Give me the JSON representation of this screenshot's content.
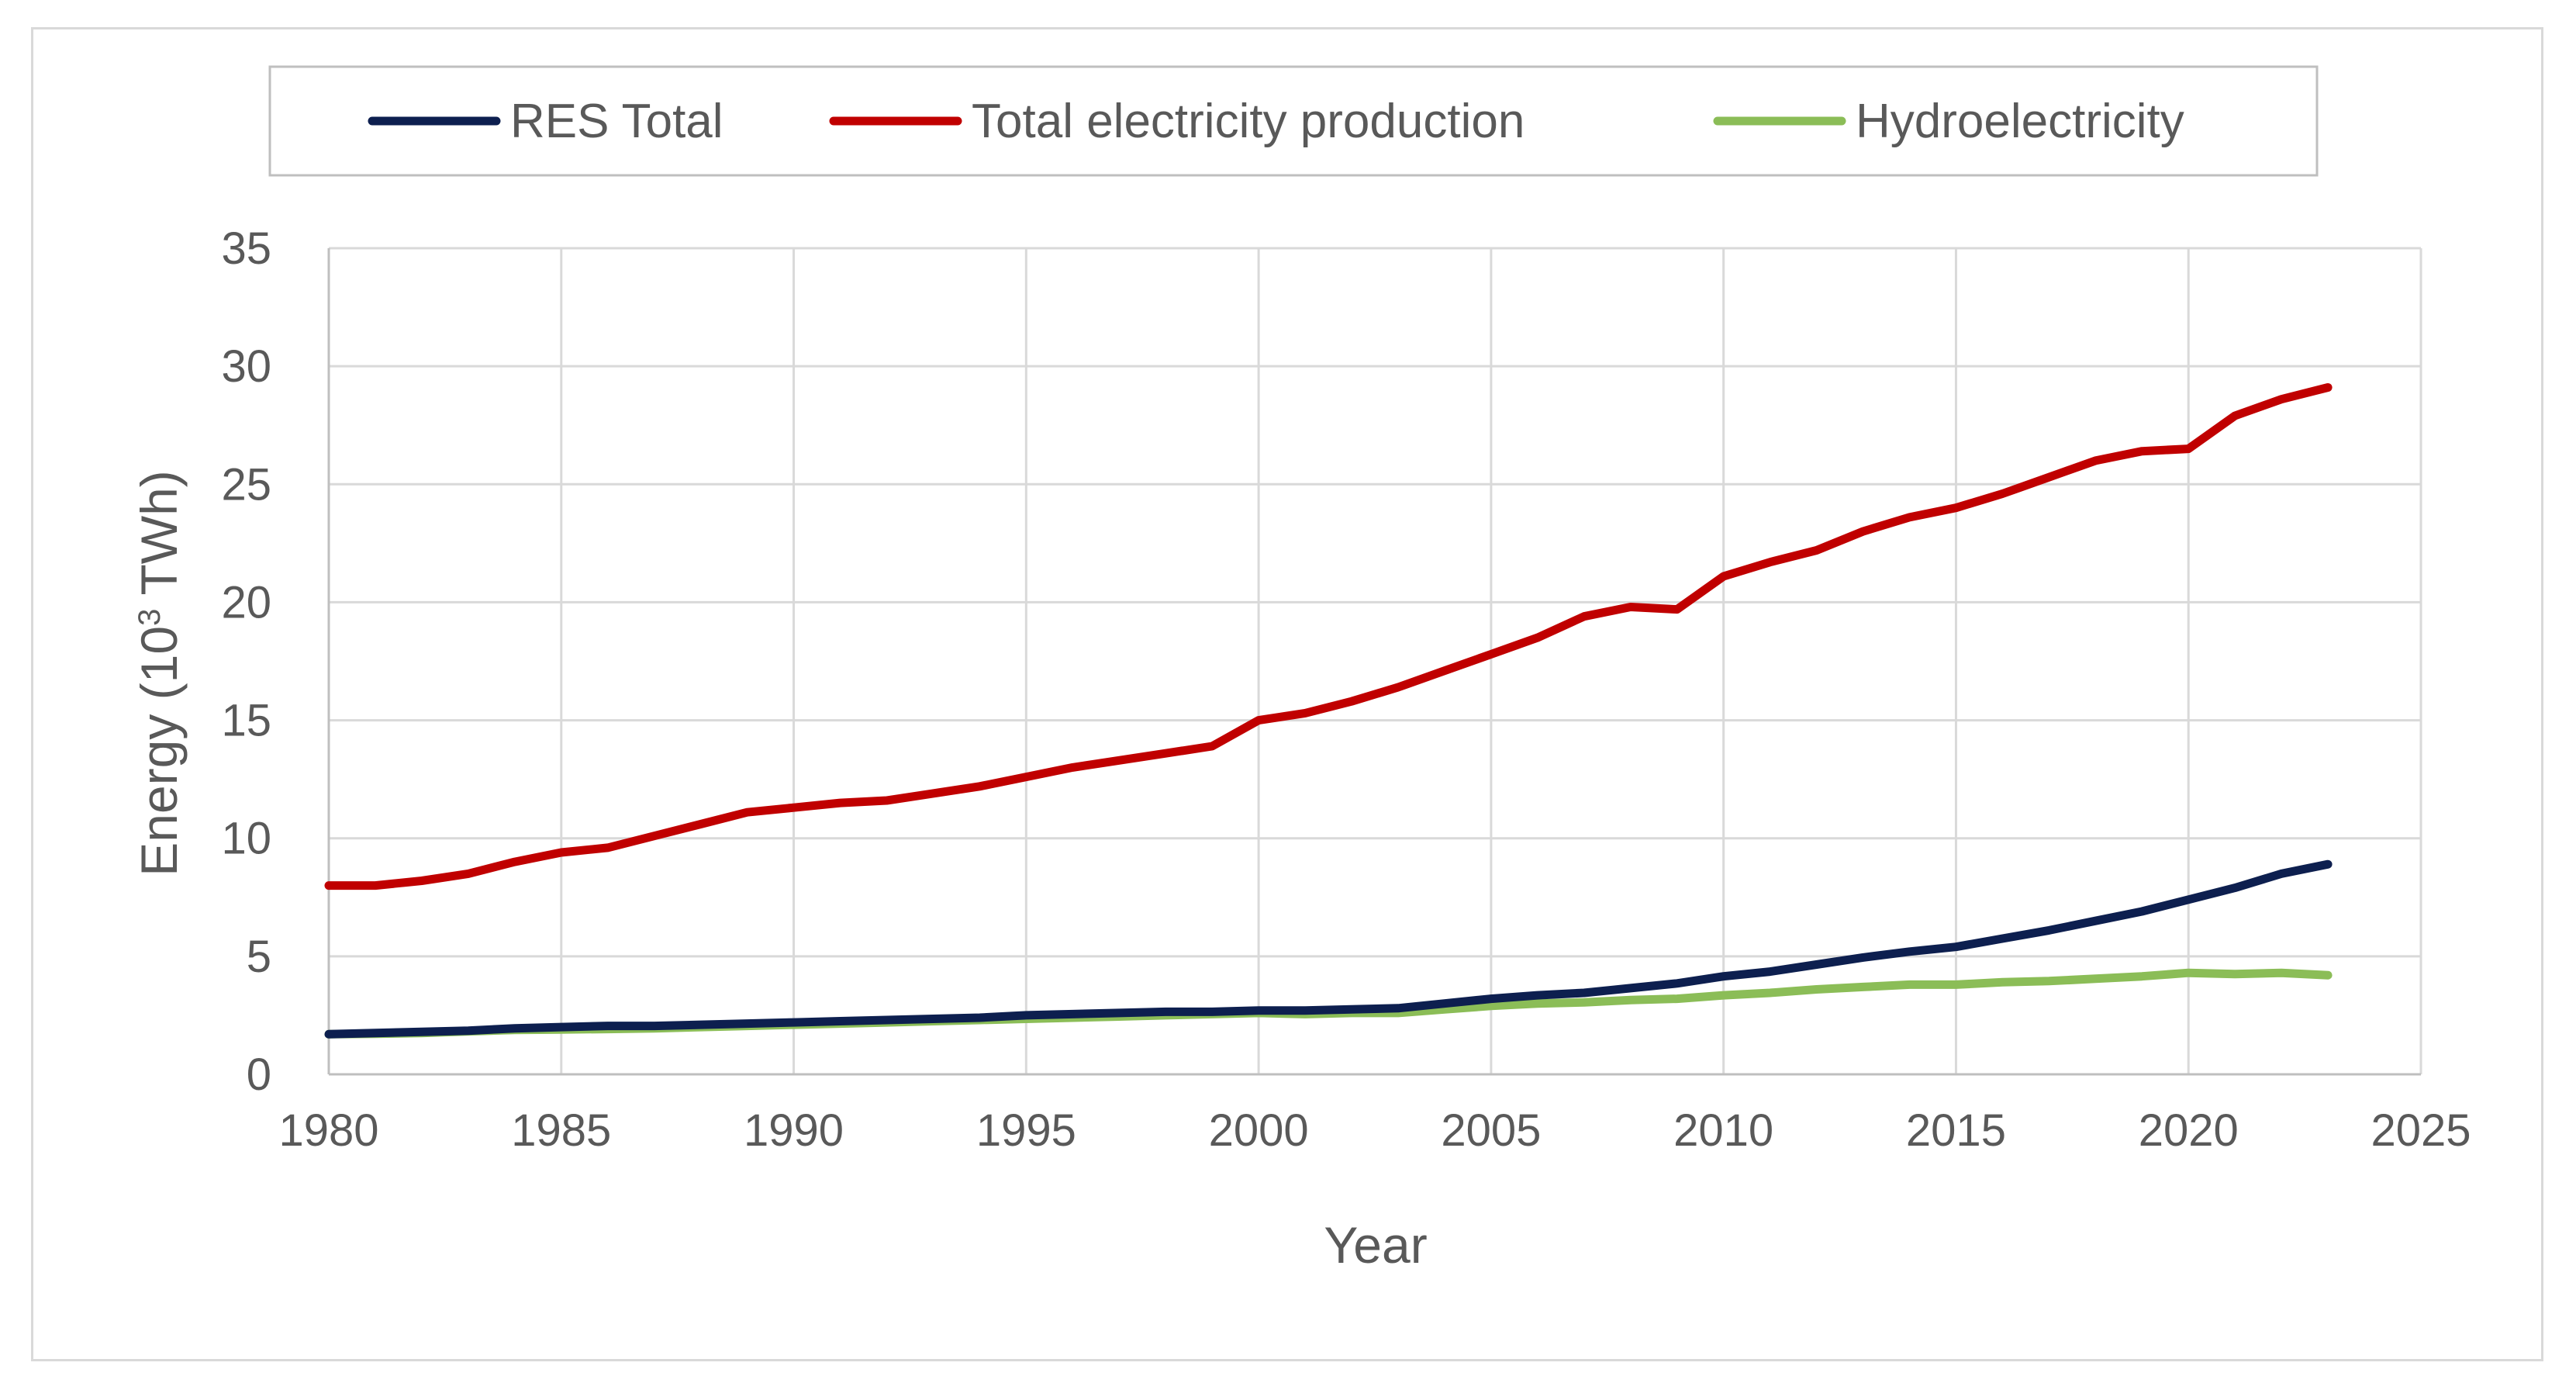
{
  "chart_data": {
    "type": "line",
    "title": "",
    "xlabel": "Year",
    "ylabel": "Energy (10",
    "ylabel_superscript": "3",
    "ylabel_suffix": " TWh)",
    "xlim": [
      1980,
      2025
    ],
    "ylim": [
      0,
      35
    ],
    "x_ticks": [
      1980,
      1985,
      1990,
      1995,
      2000,
      2005,
      2010,
      2015,
      2020,
      2025
    ],
    "y_ticks": [
      0,
      5,
      10,
      15,
      20,
      25,
      30,
      35
    ],
    "grid": true,
    "legend_position": "top",
    "legend": [
      "RES Total",
      "Total electricity production",
      "Hydroelectricity"
    ],
    "x": [
      1980,
      1981,
      1982,
      1983,
      1984,
      1985,
      1986,
      1987,
      1988,
      1989,
      1990,
      1991,
      1992,
      1993,
      1994,
      1995,
      1996,
      1997,
      1998,
      1999,
      2000,
      2001,
      2002,
      2003,
      2004,
      2005,
      2006,
      2007,
      2008,
      2009,
      2010,
      2011,
      2012,
      2013,
      2014,
      2015,
      2016,
      2017,
      2018,
      2019,
      2020,
      2021,
      2022,
      2023
    ],
    "series": [
      {
        "name": "RES Total",
        "color": "#0d1f4f",
        "values": [
          1.7,
          1.75,
          1.8,
          1.85,
          1.95,
          2.0,
          2.05,
          2.05,
          2.1,
          2.15,
          2.2,
          2.25,
          2.3,
          2.35,
          2.4,
          2.5,
          2.55,
          2.6,
          2.65,
          2.65,
          2.7,
          2.7,
          2.75,
          2.8,
          3.0,
          3.2,
          3.35,
          3.45,
          3.65,
          3.85,
          4.15,
          4.35,
          4.65,
          4.95,
          5.2,
          5.4,
          5.75,
          6.1,
          6.5,
          6.9,
          7.4,
          7.9,
          8.5,
          8.9
        ]
      },
      {
        "name": "Total electricity production",
        "color": "#c00000",
        "values": [
          8.0,
          8.0,
          8.2,
          8.5,
          9.0,
          9.4,
          9.6,
          10.1,
          10.6,
          11.1,
          11.3,
          11.5,
          11.6,
          11.9,
          12.2,
          12.6,
          13.0,
          13.3,
          13.6,
          13.9,
          15.0,
          15.3,
          15.8,
          16.4,
          17.1,
          17.8,
          18.5,
          19.4,
          19.8,
          19.7,
          21.1,
          21.7,
          22.2,
          23.0,
          23.6,
          24.0,
          24.6,
          25.3,
          26.0,
          26.4,
          26.5,
          27.9,
          28.6,
          29.1
        ]
      },
      {
        "name": "Hydroelectricity",
        "color": "#8bbd57",
        "values": [
          1.7,
          1.72,
          1.75,
          1.82,
          1.88,
          1.9,
          1.92,
          1.95,
          2.0,
          2.05,
          2.1,
          2.15,
          2.2,
          2.25,
          2.3,
          2.35,
          2.4,
          2.45,
          2.5,
          2.55,
          2.6,
          2.55,
          2.6,
          2.6,
          2.75,
          2.9,
          3.0,
          3.05,
          3.15,
          3.2,
          3.35,
          3.45,
          3.6,
          3.7,
          3.8,
          3.8,
          3.9,
          3.95,
          4.05,
          4.15,
          4.3,
          4.25,
          4.3,
          4.2
        ]
      }
    ]
  }
}
